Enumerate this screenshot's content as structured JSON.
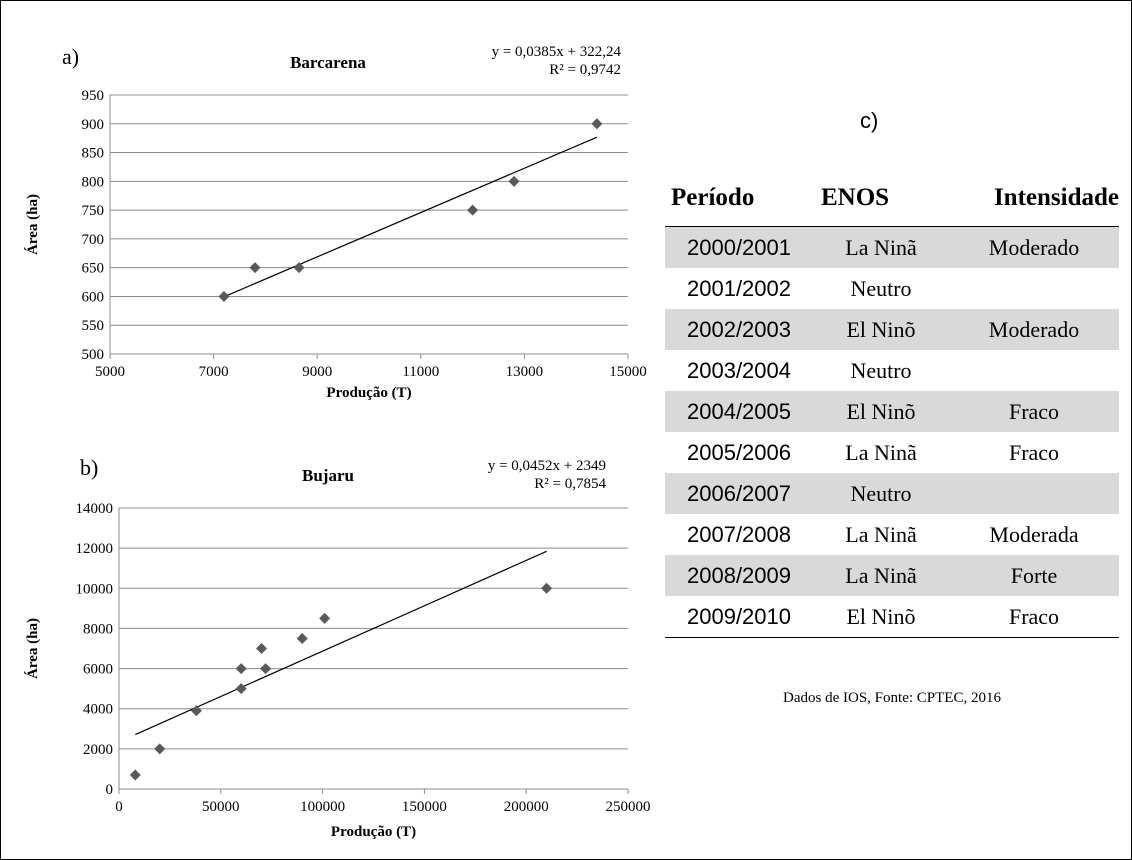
{
  "chart_data": [
    {
      "type": "scatter",
      "panel": "a)",
      "title": "Barcarena",
      "xlabel": "Produção  (T)",
      "ylabel": "Área (ha)",
      "xlim": [
        5000,
        15000
      ],
      "ylim": [
        500,
        950
      ],
      "xticks": [
        5000,
        7000,
        9000,
        11000,
        13000,
        15000
      ],
      "yticks": [
        500,
        550,
        600,
        650,
        700,
        750,
        800,
        850,
        900,
        950
      ],
      "grid": "horizontal",
      "equation": "y = 0,0385x + 322,24",
      "r2": "R² = 0,9742",
      "trend": {
        "slope": 0.0385,
        "intercept": 322.24,
        "x_from": 7200,
        "x_to": 14400
      },
      "points": [
        {
          "x": 7200,
          "y": 600
        },
        {
          "x": 7800,
          "y": 650
        },
        {
          "x": 8650,
          "y": 650
        },
        {
          "x": 12000,
          "y": 750
        },
        {
          "x": 12800,
          "y": 800
        },
        {
          "x": 14400,
          "y": 900
        }
      ]
    },
    {
      "type": "scatter",
      "panel": "b)",
      "title": "Bujaru",
      "xlabel": "Produção  (T)",
      "ylabel": "Área (ha)",
      "xlim": [
        0,
        250000
      ],
      "ylim": [
        0,
        14000
      ],
      "xticks": [
        0,
        50000,
        100000,
        150000,
        200000,
        250000
      ],
      "yticks": [
        0,
        2000,
        4000,
        6000,
        8000,
        10000,
        12000,
        14000
      ],
      "grid": "horizontal",
      "equation": "y = 0,0452x + 2349",
      "r2": "R² = 0,7854",
      "trend": {
        "slope": 0.0452,
        "intercept": 2349,
        "x_from": 8000,
        "x_to": 210000
      },
      "points": [
        {
          "x": 8000,
          "y": 700
        },
        {
          "x": 20000,
          "y": 2000
        },
        {
          "x": 38000,
          "y": 3900
        },
        {
          "x": 60000,
          "y": 5000
        },
        {
          "x": 60000,
          "y": 6000
        },
        {
          "x": 70000,
          "y": 7000
        },
        {
          "x": 72000,
          "y": 6000
        },
        {
          "x": 90000,
          "y": 7500
        },
        {
          "x": 101000,
          "y": 8500
        },
        {
          "x": 210000,
          "y": 10000
        }
      ]
    },
    {
      "type": "table",
      "panel": "c)",
      "headers": [
        "Período",
        "ENOS",
        "Intensidade"
      ],
      "rows": [
        [
          "2000/2001",
          "La Ninã",
          "Moderado"
        ],
        [
          "2001/2002",
          "Neutro",
          ""
        ],
        [
          "2002/2003",
          "El Ninõ",
          "Moderado"
        ],
        [
          "2003/2004",
          "Neutro",
          ""
        ],
        [
          "2004/2005",
          "El Ninõ",
          "Fraco"
        ],
        [
          "2005/2006",
          "La Ninã",
          "Fraco"
        ],
        [
          "2006/2007",
          "Neutro",
          ""
        ],
        [
          "2007/2008",
          "La Ninã",
          "Moderada"
        ],
        [
          "2008/2009",
          "La Ninã",
          "Forte"
        ],
        [
          "2009/2010",
          "El Ninõ",
          "Fraco"
        ]
      ],
      "shaded_rows": [
        0,
        2,
        4,
        6,
        8
      ],
      "note": "Dados de IOS, Fonte:  CPTEC, 2016"
    }
  ]
}
